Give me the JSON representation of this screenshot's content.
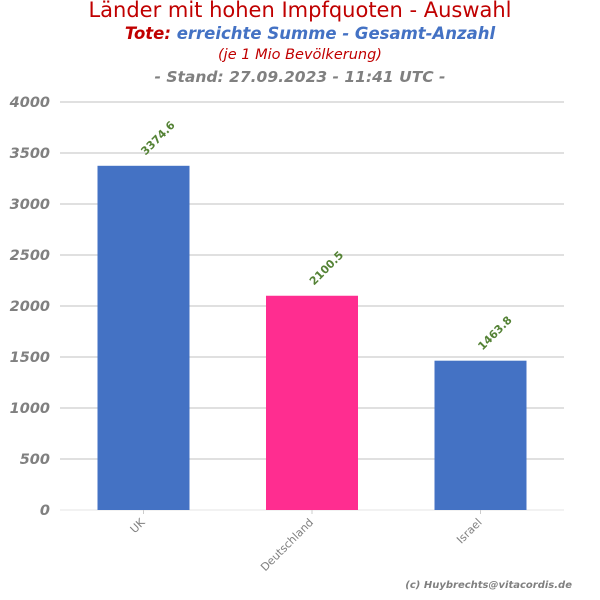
{
  "header": {
    "title": "Länder mit hohen Impfquoten - Auswahl",
    "subtitle_prefix": "Tote:",
    "subtitle_main": "erreichte Summe - Gesamt-Anzahl",
    "note": "(je 1 Mio Bevölkerung)",
    "stand": "- Stand: 27.09.2023 - 11:41 UTC -"
  },
  "footer": {
    "copyright": "(c) Huybrechts@vitacordis.de"
  },
  "chart_data": {
    "type": "bar",
    "title": "Länder mit hohen Impfquoten - Auswahl",
    "categories": [
      "UK",
      "Deutschland",
      "Israel"
    ],
    "values": [
      3374.6,
      2100.5,
      1463.8
    ],
    "data_labels": [
      "3374.6",
      "2100.5",
      "1463.8"
    ],
    "bar_colors": [
      "#4472c4",
      "#ff2d90",
      "#4472c4"
    ],
    "label_color": "#548235",
    "xlabel": "",
    "ylabel": "",
    "ylim": [
      0,
      4000
    ],
    "yticks": [
      0,
      500,
      1000,
      1500,
      2000,
      2500,
      3000,
      3500,
      4000
    ],
    "grid": true,
    "legend": "none"
  }
}
